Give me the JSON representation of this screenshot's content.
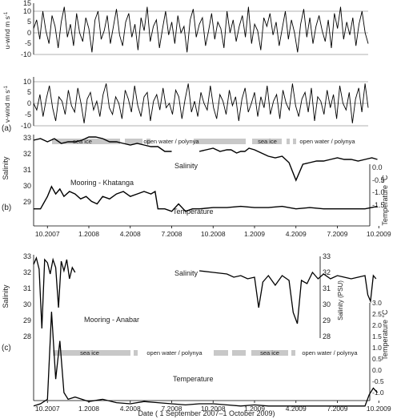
{
  "chart_data": [
    {
      "panel": "(a)",
      "type": "line",
      "ylabel": "u-wind m s⁻¹",
      "ylim": [
        -10,
        15
      ],
      "yticks": [
        -10,
        -5,
        0,
        5,
        10,
        15
      ],
      "gridlines": [
        10,
        0,
        -10
      ],
      "series": [
        {
          "values": [
            2,
            6,
            -3,
            10,
            1,
            -5,
            8,
            3,
            -7,
            5,
            12,
            -2,
            4,
            -6,
            9,
            0,
            -4,
            7,
            2,
            -9,
            6,
            10,
            -3,
            1,
            8,
            -5,
            3,
            11,
            -1,
            -6,
            5,
            9,
            -2,
            4,
            -8,
            7,
            1,
            12,
            -4,
            3,
            6,
            -7,
            2,
            10,
            -1,
            5,
            -5,
            8,
            0,
            3,
            -9,
            6,
            11,
            -2,
            4,
            7,
            -6,
            1,
            9,
            -3,
            5,
            2,
            -7,
            10,
            0,
            6,
            -4,
            3,
            8,
            -2,
            12,
            -5,
            4,
            1,
            -8,
            7,
            3,
            9,
            -1,
            5,
            -6,
            2,
            10,
            -3,
            6,
            0,
            -9,
            4,
            11,
            -2,
            7,
            -5,
            3,
            8,
            1,
            -4,
            6,
            -7,
            9,
            2,
            12,
            -3,
            5,
            -1,
            7,
            -6,
            4,
            10,
            0,
            -5
          ]
        }
      ]
    },
    {
      "panel": "(a)",
      "type": "line",
      "ylabel": "v-wind m s⁻¹",
      "ylim": [
        -10,
        10
      ],
      "yticks": [
        -10,
        -5,
        0,
        5,
        10
      ],
      "gridlines": [
        10,
        0,
        -10
      ],
      "series": [
        {
          "values": [
            0,
            -3,
            4,
            -6,
            2,
            8,
            -2,
            -8,
            3,
            1,
            -5,
            6,
            -1,
            -4,
            7,
            0,
            -9,
            2,
            5,
            -3,
            1,
            -6,
            4,
            9,
            -2,
            -5,
            3,
            0,
            -7,
            6,
            2,
            -4,
            8,
            -1,
            -6,
            3,
            5,
            -8,
            1,
            4,
            -3,
            7,
            -2,
            0,
            -5,
            6,
            3,
            -7,
            2,
            9,
            -4,
            1,
            -6,
            5,
            0,
            -3,
            8,
            -2,
            -7,
            4,
            1,
            -5,
            6,
            -1,
            3,
            -8,
            2,
            7,
            -4,
            0,
            5,
            -6,
            3,
            -2,
            8,
            -5,
            1,
            4,
            -7,
            6,
            0,
            -3,
            9,
            -1,
            -6,
            2,
            5,
            -4,
            7,
            -8,
            3,
            1,
            -5,
            6,
            -2,
            4,
            -7,
            8,
            0,
            -3,
            5,
            -9,
            2,
            7,
            -4,
            9,
            -2
          ]
        }
      ]
    },
    {
      "panel": "(b)",
      "type": "line",
      "annotation": "Mooring - Khatanga",
      "left_axis": {
        "label": "Salinity",
        "ticks": [
          29,
          30,
          31,
          32,
          33
        ]
      },
      "right_axis": {
        "label": "Temperature °C",
        "ticks": [
          0.0,
          -0.5,
          -1.0,
          -1.5
        ]
      },
      "x_tick_labels": [
        "10.2007",
        "1.2008",
        "4.2008",
        "7.2008",
        "10.2008",
        "1.2009",
        "4.2009",
        "7.2009",
        "10.2009"
      ],
      "bar_labels": [
        "sea ice",
        "open water / polynya",
        "sea ice",
        "open water / polynya"
      ],
      "series": [
        {
          "name": "Salinity",
          "x": [
            9.0,
            9.5,
            10.0,
            10.5,
            11.0,
            11.5,
            12.0,
            12.5,
            13.0,
            13.5,
            14.0,
            14.5,
            15.0,
            15.5,
            16.0,
            16.5,
            17.0,
            17.5,
            18.0,
            18.5,
            19.0
          ],
          "values": [
            33.0,
            33.1,
            32.9,
            33.1,
            32.8,
            32.9,
            32.9,
            33.0,
            33.2,
            33.2,
            33.1,
            32.9,
            32.9,
            32.8,
            32.7,
            32.8,
            32.7,
            32.6,
            32.6,
            32.3,
            32.3
          ]
        },
        {
          "name": "Salinity",
          "x": [
            21.0,
            21.5,
            22.0,
            22.5,
            23.0,
            23.3,
            23.7,
            24.0,
            24.3,
            24.6,
            25.0,
            25.5,
            26.0,
            26.5,
            27.0,
            27.5,
            28.0,
            28.5,
            29.0,
            29.5,
            30.0,
            30.5,
            31.0,
            31.5,
            32.0,
            32.5,
            33.0,
            33.5,
            33.9
          ],
          "values": [
            32.3,
            32.4,
            32.5,
            32.3,
            32.4,
            32.4,
            32.2,
            32.3,
            32.3,
            32.5,
            32.4,
            32.2,
            32.0,
            31.9,
            32.0,
            31.6,
            30.5,
            31.5,
            31.6,
            31.7,
            31.7,
            31.8,
            31.9,
            31.8,
            31.8,
            31.7,
            31.8,
            31.9,
            31.8
          ]
        },
        {
          "name": "Temperature",
          "x": [
            9.0,
            9.5,
            10.0,
            10.3,
            10.6,
            10.9,
            11.2,
            11.6,
            12.0,
            12.4,
            12.8,
            13.2,
            13.6,
            14.0,
            14.5,
            15.0,
            15.5,
            16.0,
            16.5,
            17.0,
            17.5,
            17.8,
            18.0,
            18.5,
            19.0,
            19.5,
            20.0,
            20.5,
            21.0,
            22.0,
            23.0,
            24.0,
            25.0,
            26.0,
            27.0,
            28.0,
            29.0,
            30.0,
            31.0,
            32.0,
            33.0,
            33.9
          ],
          "values": [
            -1.7,
            -1.7,
            -1.2,
            -0.8,
            -1.1,
            -0.9,
            -1.2,
            -1.0,
            -1.1,
            -1.3,
            -1.2,
            -1.4,
            -1.5,
            -1.2,
            -1.3,
            -1.1,
            -1.0,
            -1.2,
            -1.1,
            -1.0,
            -1.1,
            -1.0,
            -1.7,
            -1.7,
            -1.8,
            -1.5,
            -1.8,
            -1.7,
            -1.7,
            -1.65,
            -1.65,
            -1.6,
            -1.65,
            -1.65,
            -1.6,
            -1.7,
            -1.65,
            -1.7,
            -1.7,
            -1.7,
            -1.7,
            -1.6
          ]
        }
      ]
    },
    {
      "panel": "(c)",
      "type": "line",
      "annotation": "Mooring - Anabar",
      "left_axis": {
        "label": "Salinity",
        "ticks": [
          28,
          29,
          30,
          31,
          32,
          33
        ]
      },
      "right_axis_salinity": {
        "label": "Salinity (PSU)",
        "ticks": [
          28,
          29,
          30,
          31,
          32,
          33
        ]
      },
      "right_axis_temperature": {
        "label": "Temperature °C",
        "ticks": [
          3.0,
          2.5,
          2.0,
          1.5,
          1.0,
          0.5,
          0.0,
          -0.5,
          -1.0
        ]
      },
      "x_tick_labels": [
        "10.2007",
        "1.2008",
        "4.2008",
        "7.2008",
        "10.2008",
        "1.2009",
        "4.2009",
        "7.2009",
        "10.2009"
      ],
      "bar_labels": [
        "sea ice",
        "open water / polynya",
        "sea ice",
        "open water / polynya"
      ],
      "xlabel": "Date ( 1 September 2007–1 October 2009)",
      "series": [
        {
          "name": "Salinity",
          "x": [
            9.0,
            9.2,
            9.4,
            9.6,
            9.8,
            10.0,
            10.2,
            10.4,
            10.6,
            10.8,
            11.0,
            11.2,
            11.4,
            11.6,
            11.8,
            12.0
          ],
          "values": [
            32.5,
            32.9,
            32.2,
            28.5,
            32.8,
            32.6,
            31.9,
            32.8,
            32.3,
            29.8,
            32.7,
            32.1,
            32.8,
            31.6,
            32.3,
            32.0
          ]
        },
        {
          "name": "Salinity",
          "x": [
            21.0,
            22.0,
            23.0,
            23.5,
            24.0,
            24.5,
            25.0,
            25.3,
            25.6,
            26.0,
            26.5,
            27.0,
            27.5,
            27.8,
            28.1,
            28.4,
            28.8,
            29.2,
            29.6,
            30.0,
            30.5,
            31.0,
            31.5,
            32.0,
            32.5,
            33.0,
            33.2,
            33.4,
            33.6,
            33.8
          ],
          "values": [
            32.1,
            32.0,
            31.9,
            31.7,
            31.8,
            31.6,
            31.7,
            29.8,
            31.4,
            31.8,
            31.2,
            31.8,
            31.5,
            29.5,
            28.8,
            31.5,
            31.3,
            32.0,
            31.6,
            31.9,
            31.6,
            31.8,
            31.7,
            31.6,
            31.7,
            31.8,
            30.6,
            30.2,
            31.8,
            31.6
          ]
        },
        {
          "name": "Temperature",
          "x": [
            9.0,
            9.5,
            10.0,
            10.3,
            10.6,
            10.9,
            11.2,
            11.5,
            12.0,
            12.5,
            13.0,
            14.0,
            15.0,
            16.0,
            17.0,
            18.0,
            19.0,
            20.0,
            21.0,
            22.0,
            23.0,
            24.0,
            25.0,
            26.0,
            27.0,
            28.0,
            29.0,
            30.0,
            31.0,
            32.0,
            33.0,
            33.3,
            33.6,
            33.9
          ],
          "values": [
            -1.6,
            -1.5,
            -1.3,
            2.6,
            -0.4,
            1.3,
            -1.0,
            -1.3,
            -1.2,
            -1.3,
            -1.4,
            -1.3,
            -1.45,
            -1.5,
            -1.4,
            -1.45,
            -1.5,
            -1.55,
            -1.5,
            -1.5,
            -1.55,
            -1.6,
            -1.55,
            -1.6,
            -1.6,
            -1.6,
            -1.6,
            -1.6,
            -1.6,
            -1.6,
            -1.6,
            -1.1,
            -0.8,
            -1.0
          ]
        }
      ]
    }
  ],
  "labels": {
    "panel_a": "(a)",
    "panel_b": "(b)",
    "panel_c": "(c)",
    "u_ylabel": "u-wind m s",
    "u_sup": "-1",
    "v_ylabel": "v-wind m s",
    "v_sup": "-1",
    "b_salinity": "Salinity",
    "b_salinity_curve": "Salinity",
    "b_temperature_curve": "Temperature",
    "b_mooring": "Mooring - Khatanga",
    "b_right_label": "Temperature °C",
    "c_salinity": "Salinity",
    "c_salinity_curve": "Salinity",
    "c_temperature_curve": "Temperature",
    "c_mooring": "Mooring - Anabar",
    "c_right_sal": "Salinity (PSU)",
    "c_right_temp": "Temperature °C",
    "xlabel": "Date ( 1 September 2007–1 October 2009)",
    "sea_ice": "sea ice",
    "open_water": "open water / polynya"
  }
}
